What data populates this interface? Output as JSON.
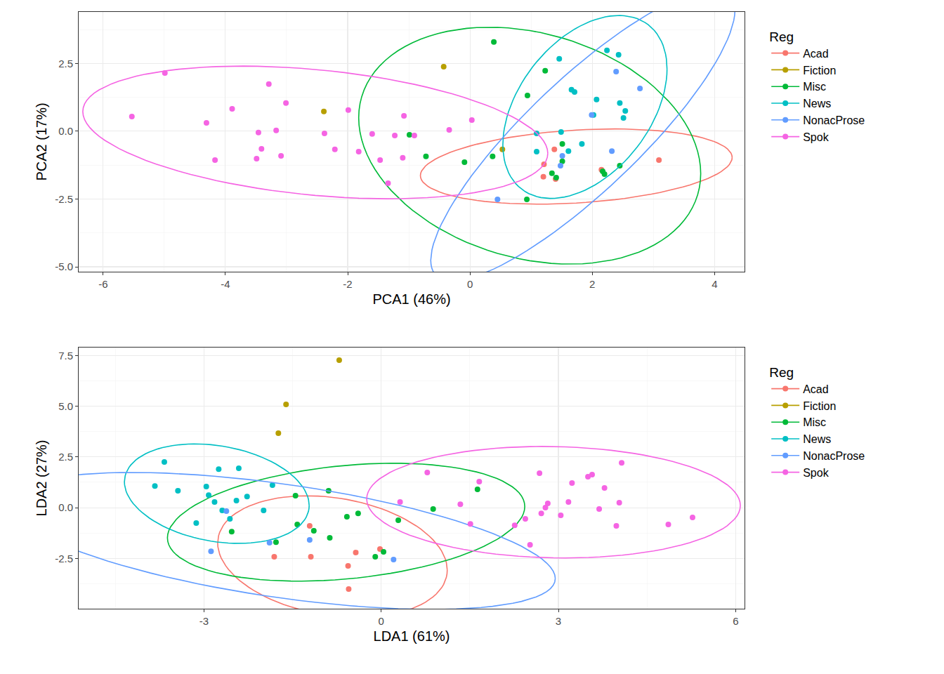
{
  "chart_data": [
    {
      "type": "scatter",
      "x_label": "PCA1 (46%)",
      "y_label": "PCA2 (17%)",
      "legend_title": "Reg",
      "legend": "right",
      "grid": true,
      "xlim": [
        -6.4,
        4.49
      ],
      "ylim": [
        -5.18,
        4.4
      ],
      "xticks": [
        -6,
        -4,
        -2,
        0,
        2,
        4
      ],
      "yticks": [
        {
          "value": -5,
          "label": "-5.0"
        },
        {
          "value": -2.5,
          "label": "-2.5"
        },
        {
          "value": 0,
          "label": "0.0"
        },
        {
          "value": 2.5,
          "label": "2.5"
        }
      ],
      "series": [
        {
          "name": "Acad",
          "color": "#F8766D",
          "x": [
            1.38,
            1.21,
            1.2,
            1.4,
            2.15,
            3.09
          ],
          "y": [
            -0.67,
            -1.22,
            -1.68,
            -1.76,
            -1.42,
            -1.06
          ]
        },
        {
          "name": "Fiction",
          "color": "#B79F00",
          "x": [
            -2.39,
            -0.43,
            0.53
          ],
          "y": [
            0.73,
            2.38,
            -0.67
          ]
        },
        {
          "name": "Misc",
          "color": "#00BA38",
          "x": [
            0.39,
            1.23,
            0.94,
            -0.99,
            -0.72,
            -0.09,
            0.37,
            0.93,
            1.51,
            1.51,
            1.34,
            1.41,
            2.17,
            2.2,
            2.45
          ],
          "y": [
            3.29,
            2.23,
            1.32,
            -0.13,
            -0.93,
            -1.14,
            -0.93,
            -2.51,
            -0.47,
            -1.11,
            -1.55,
            -1.71,
            -1.48,
            -1.58,
            -1.27
          ]
        },
        {
          "name": "News",
          "color": "#00BFC4",
          "x": [
            1.46,
            2.24,
            2.43,
            1.66,
            1.71,
            2.07,
            2.45,
            2.54,
            2.51,
            2.02,
            1.09,
            1.49,
            1.83,
            1.61,
            1.09
          ],
          "y": [
            2.67,
            2.98,
            2.82,
            1.53,
            1.45,
            1.17,
            1.04,
            0.75,
            0.49,
            0.6,
            -0.08,
            -0.03,
            -0.47,
            -0.73,
            -0.75
          ]
        },
        {
          "name": "NonacProse",
          "color": "#619CFF",
          "x": [
            2.78,
            2.39,
            1.99,
            2.32,
            1.51,
            1.48,
            0.45
          ],
          "y": [
            1.58,
            2.2,
            0.6,
            -0.73,
            -0.91,
            -1.27,
            -2.51
          ]
        },
        {
          "name": "Spok",
          "color": "#F564E3",
          "x": [
            -5.53,
            -4.99,
            -4.31,
            -4.17,
            -3.89,
            -3.46,
            -3.49,
            -3.41,
            -3.29,
            -3.17,
            -3.09,
            -3.01,
            -2.38,
            -2.21,
            -1.99,
            -1.82,
            -1.6,
            -1.47,
            -1.34,
            -1.23,
            -1.08,
            -1.1,
            -0.91,
            -0.34,
            0.03
          ],
          "y": [
            0.54,
            2.15,
            0.31,
            -1.06,
            0.83,
            -0.05,
            -1.01,
            -0.65,
            1.74,
            0.03,
            -0.91,
            1.04,
            -0.08,
            -0.67,
            0.78,
            -0.75,
            -0.1,
            -1.06,
            -1.92,
            -0.16,
            0.57,
            -0.98,
            -0.16,
            0.05,
            0.41
          ]
        }
      ]
    },
    {
      "type": "scatter",
      "x_label": "LDA1 (61%)",
      "y_label": "LDA2 (27%)",
      "legend_title": "Reg",
      "legend": "right",
      "grid": true,
      "xlim": [
        -5.12,
        6.15
      ],
      "ylim": [
        -4.98,
        7.89
      ],
      "xticks": [
        -3,
        0,
        3,
        6
      ],
      "yticks": [
        {
          "value": -2.5,
          "label": "-2.5"
        },
        {
          "value": 0,
          "label": "0.0"
        },
        {
          "value": 2.5,
          "label": "2.5"
        },
        {
          "value": 5,
          "label": "5.0"
        },
        {
          "value": 7.5,
          "label": "7.5"
        }
      ],
      "series": [
        {
          "name": "Acad",
          "color": "#F8766D",
          "x": [
            -1.81,
            -1.19,
            -1.21,
            -0.56,
            -0.55,
            -0.43,
            -0.02
          ],
          "y": [
            -2.42,
            -2.42,
            -0.9,
            -2.87,
            -4.01,
            -2.21,
            -2.04
          ]
        },
        {
          "name": "Fiction",
          "color": "#B79F00",
          "x": [
            -0.71,
            -1.61,
            -1.74
          ],
          "y": [
            7.27,
            5.09,
            3.67
          ]
        },
        {
          "name": "Misc",
          "color": "#00BA38",
          "x": [
            -2.53,
            -1.78,
            -1.45,
            -1.42,
            -1.14,
            -0.89,
            -0.87,
            -0.58,
            -0.39,
            0.29,
            0.88,
            1.63,
            0.04,
            -0.1
          ],
          "y": [
            -1.18,
            -1.7,
            0.59,
            -0.83,
            -1.14,
            0.83,
            -1.49,
            -0.45,
            -0.28,
            -0.62,
            -0.07,
            0.9,
            -2.18,
            -2.42
          ]
        },
        {
          "name": "News",
          "color": "#00BFC4",
          "x": [
            -3.67,
            -3.83,
            -3.44,
            -2.96,
            -2.92,
            -2.75,
            -2.41,
            -2.82,
            -2.69,
            -2.56,
            -2.45,
            -2.27,
            -1.99,
            -1.84,
            -3.13
          ],
          "y": [
            2.25,
            1.07,
            0.83,
            1.04,
            0.62,
            1.9,
            1.94,
            0.28,
            -0.14,
            -0.55,
            0.35,
            0.55,
            -0.14,
            1.11,
            -0.76
          ]
        },
        {
          "name": "NonacProse",
          "color": "#619CFF",
          "x": [
            -2.88,
            -2.62,
            -1.89,
            -1.21,
            0.21
          ],
          "y": [
            -2.15,
            -0.17,
            -1.73,
            -1.59,
            -2.56
          ]
        },
        {
          "name": "Spok",
          "color": "#F564E3",
          "x": [
            0.78,
            0.32,
            1.66,
            1.34,
            1.51,
            2.26,
            2.44,
            2.52,
            2.68,
            2.71,
            2.78,
            2.82,
            3.04,
            3.17,
            3.23,
            3.5,
            3.57,
            3.78,
            3.69,
            3.98,
            4.03,
            4.07,
            4.86,
            5.27
          ],
          "y": [
            1.73,
            0.28,
            1.28,
            0.17,
            -0.8,
            -0.87,
            -0.55,
            -1.83,
            1.7,
            -0.28,
            0.0,
            0.21,
            -0.38,
            0.28,
            1.21,
            1.52,
            1.63,
            0.97,
            -0.07,
            -0.9,
            0.24,
            2.21,
            -0.83,
            -0.48
          ]
        }
      ]
    }
  ]
}
